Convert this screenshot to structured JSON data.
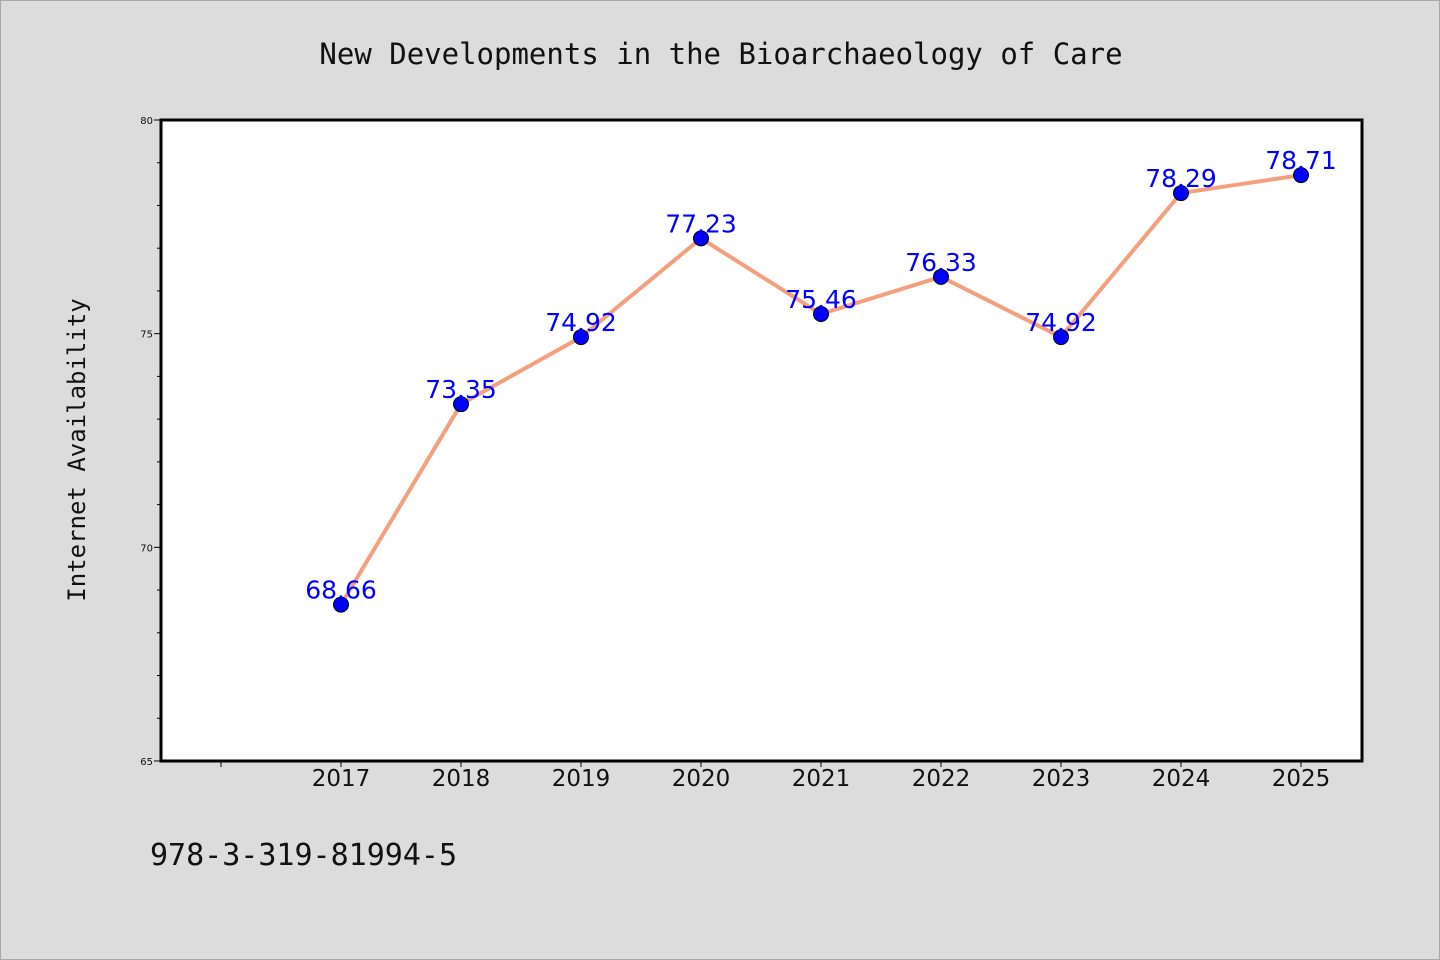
{
  "chart_data": {
    "type": "line",
    "title": "New Developments in the Bioarchaeology of Care",
    "xlabel": "",
    "ylabel": "Internet Availability",
    "categories": [
      "2017",
      "2018",
      "2019",
      "2020",
      "2021",
      "2022",
      "2023",
      "2024",
      "2025"
    ],
    "series": [
      {
        "values": [
          68.66,
          73.35,
          74.92,
          77.23,
          75.46,
          76.33,
          74.92,
          78.29,
          78.71
        ]
      }
    ],
    "data_labels": [
      "68.66",
      "73.35",
      "74.92",
      "77.23",
      "75.46",
      "76.33",
      "74.92",
      "78.29",
      "78.71"
    ],
    "ylim": [
      65,
      80
    ],
    "yticks": [
      "65",
      "70",
      "75",
      "80"
    ],
    "grid": false,
    "legend": "none",
    "footnote": "978-3-319-81994-5",
    "colors": {
      "line": "#f4a07e",
      "marker": "#0000ff",
      "marker_edge": "#000000",
      "data_label": "#0000ff",
      "plot_background": "#ffffff",
      "page_background": "#dcdcdc"
    }
  }
}
